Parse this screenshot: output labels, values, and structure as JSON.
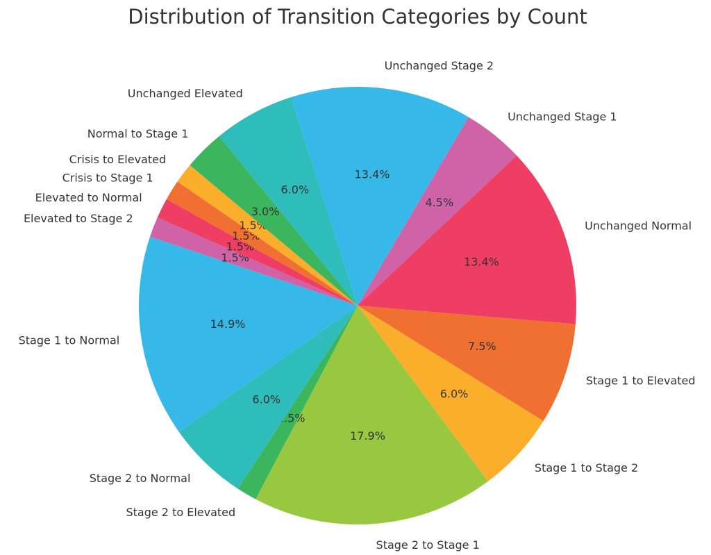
{
  "chart_data": {
    "type": "pie",
    "title": "Distribution of Transition Categories by Count",
    "categories": [
      "Unchanged Stage 2",
      "Unchanged Stage 1",
      "Unchanged Normal",
      "Stage 1 to Elevated",
      "Stage 1 to Stage 2",
      "Stage 2 to Stage 1",
      "Stage 2 to Elevated",
      "Stage 2 to Normal",
      "Stage 1 to Normal",
      "Elevated to Stage 2",
      "Elevated to Normal",
      "Crisis to Stage 1",
      "Crisis to Elevated",
      "Normal to Stage 1",
      "Unchanged Elevated"
    ],
    "values": [
      13.4,
      4.5,
      13.4,
      7.5,
      6.0,
      17.9,
      1.5,
      6.0,
      14.9,
      1.5,
      1.5,
      1.5,
      1.5,
      3.0,
      6.0
    ],
    "value_labels": [
      "13.4%",
      "4.5%",
      "13.4%",
      "7.5%",
      "6.0%",
      "17.9%",
      "1.5%",
      "6.0%",
      "14.9%",
      "1.5%",
      "1.5%",
      "1.5%",
      "1.5%",
      "3.0%",
      "6.0%"
    ],
    "colors": [
      "#36b9e8",
      "#d063a8",
      "#ef3e63",
      "#f07032",
      "#fbad2c",
      "#98c840",
      "#3bb55e",
      "#2fbdbb",
      "#36b9e8",
      "#d063a8",
      "#ef3e63",
      "#f07032",
      "#fbad2c",
      "#3bb55e",
      "#2fbdbb"
    ]
  }
}
